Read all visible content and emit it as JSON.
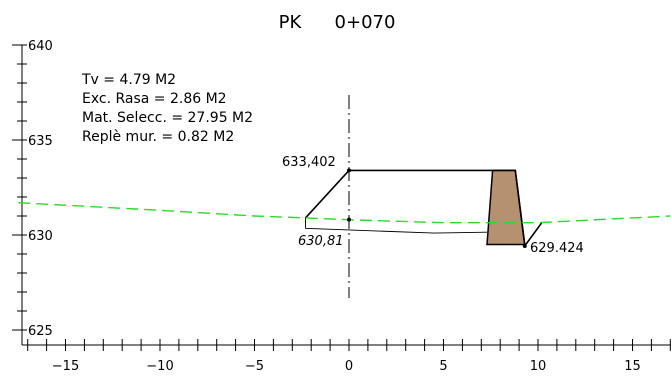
{
  "section": {
    "title_prefix": "PK",
    "title_station": "0+070"
  },
  "info": {
    "lines": [
      "Tv = 4.79 M2",
      "Exc. Rasa = 2.86 M2",
      "Mat. Selecc. = 27.95 M2",
      "Replè mur. = 0.82 M2"
    ]
  },
  "labels": {
    "top_elevation": "633,402",
    "ground_elevation": "630,81",
    "toe_elevation": "629.424"
  },
  "axes": {
    "x_ticks": [
      "−15",
      "−10",
      "−5",
      "0",
      "5",
      "10",
      "15"
    ],
    "y_ticks": [
      "640",
      "635",
      "630",
      "625"
    ]
  },
  "chart_data": {
    "type": "line",
    "title": "PK     0+070",
    "xlabel": "",
    "ylabel": "",
    "xlim": [
      -17.5,
      17
    ],
    "ylim": [
      624.5,
      641
    ],
    "x_ticks": [
      -15,
      -10,
      -5,
      0,
      5,
      10,
      15
    ],
    "y_ticks": [
      625,
      630,
      635,
      640
    ],
    "series": [
      {
        "style": "terrain-dashed-green",
        "x": [
          -17.5,
          -10,
          -5,
          -2.3,
          0,
          5,
          10,
          15,
          17
        ],
        "y": [
          631.7,
          631.3,
          631.0,
          630.9,
          630.8,
          630.65,
          630.65,
          630.9,
          631.0
        ]
      },
      {
        "style": "platform-black",
        "x": [
          -2.3,
          0,
          8.8,
          9.3,
          10.2
        ],
        "y": [
          630.9,
          633.402,
          633.402,
          629.424,
          630.65
        ]
      }
    ],
    "wall": {
      "x": [
        7.3,
        7.6,
        8.8,
        9.3,
        7.3
      ],
      "y": [
        629.5,
        633.402,
        633.402,
        629.5,
        629.5
      ],
      "color": "#b59170"
    },
    "centerline_x": 0,
    "grid": false
  },
  "colors": {
    "terrain": "#2cd92c",
    "wall_fill": "#b59170",
    "line": "#000000"
  }
}
